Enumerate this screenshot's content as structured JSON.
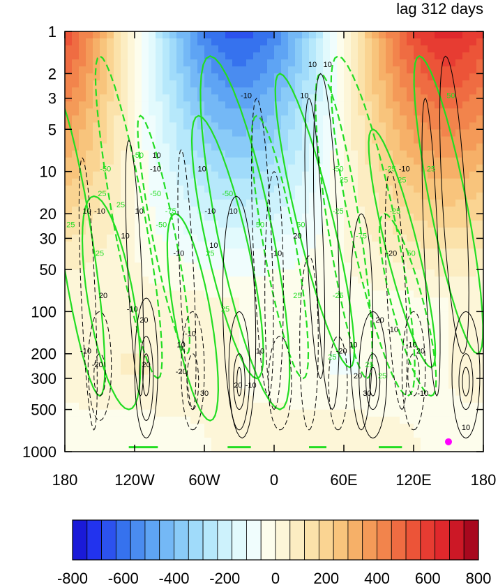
{
  "chart_data": {
    "type": "heatmap",
    "title": "lag 312 days",
    "x": {
      "ticks": [
        -180,
        -120,
        -60,
        0,
        60,
        120,
        180
      ],
      "tick_labels": [
        "180",
        "120W",
        "60W",
        "0",
        "60E",
        "120E",
        "180"
      ],
      "range": [
        -180,
        180
      ]
    },
    "y": {
      "scale": "log",
      "reversed": true,
      "ticks": [
        1,
        2,
        3,
        5,
        10,
        20,
        30,
        50,
        100,
        200,
        300,
        500,
        1000
      ],
      "tick_labels": [
        "1",
        "2",
        "3",
        "5",
        "10",
        "20",
        "30",
        "50",
        "100",
        "200",
        "300",
        "500",
        "1000"
      ],
      "range": [
        1,
        1000
      ]
    },
    "colorbar": {
      "levels": [
        -800,
        -750,
        -700,
        -650,
        -600,
        -550,
        -500,
        -450,
        -400,
        -350,
        -300,
        -250,
        -200,
        -150,
        -100,
        -50,
        0,
        50,
        100,
        150,
        200,
        250,
        300,
        350,
        400,
        450,
        500,
        550,
        600,
        650,
        700,
        750,
        800
      ],
      "tick_values": [
        -800,
        -600,
        -400,
        -200,
        0,
        200,
        400,
        600,
        800
      ],
      "tick_labels": [
        "-800",
        "-600",
        "-400",
        "-200",
        "0",
        "200",
        "400",
        "600",
        "800"
      ],
      "colors": [
        "#1a1ad8",
        "#2233ee",
        "#2c52ee",
        "#3672ee",
        "#4a8cf0",
        "#5ea4f4",
        "#74b8f6",
        "#8acbf8",
        "#a0dbfa",
        "#b6e8fb",
        "#cdf2fc",
        "#e2fafd",
        "#f0fdfd",
        "#fdfdec",
        "#fdf6d8",
        "#fcedc2",
        "#fbe2aa",
        "#fad492",
        "#f8c47c",
        "#f6b068",
        "#f49a58",
        "#f2844c",
        "#ef6c42",
        "#ec5438",
        "#e73c32",
        "#e0282c",
        "#cc1826",
        "#a8081e"
      ]
    },
    "shading_features": [
      {
        "lon": -168,
        "p": 3,
        "value": 600
      },
      {
        "lon": -28,
        "p": 3,
        "value": -500
      },
      {
        "lon": 168,
        "p": 3,
        "value": 650
      },
      {
        "lon": -40,
        "p": 300,
        "value": 0
      },
      {
        "lon": 40,
        "p": 800,
        "value": 100
      }
    ],
    "contour_labels_black": [
      "10",
      "-10",
      "10",
      "-10",
      "10",
      "10",
      "-10",
      "10",
      "-10",
      "10",
      "10",
      "-10",
      "20",
      "-20",
      "-10",
      "20",
      "-10",
      "20",
      "10",
      "-10",
      "-20",
      "30",
      "20",
      "-10",
      "10",
      "-10",
      "20",
      "10",
      "10",
      "10",
      "30",
      "20",
      "10",
      "-20",
      "20",
      "-10",
      "-10",
      "-20",
      "-10",
      "20",
      "-10",
      "10"
    ],
    "contour_labels_green": [
      "-50",
      "25",
      "-50",
      "25",
      "25",
      "-50",
      "-75",
      "25",
      "-50",
      "-50",
      "25",
      "25",
      "50",
      "25",
      "50",
      "-25",
      "25",
      "-75",
      "25",
      "-25",
      "-50",
      "25",
      "-25",
      "25",
      "50",
      "-25",
      "50",
      "25",
      "25"
    ],
    "marker": {
      "lon": 150,
      "p": 850,
      "color": "#ff00ff"
    },
    "colors": {
      "green_contour": "#22dd22",
      "black_contour": "#000000"
    }
  }
}
